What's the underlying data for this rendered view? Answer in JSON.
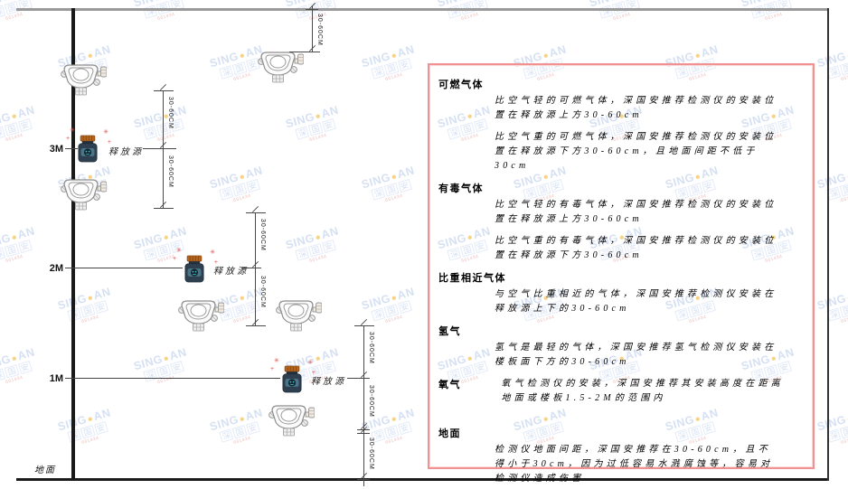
{
  "colors": {
    "panel_border": "#f29191",
    "wm_blue": "#bccdec",
    "wm_dot": "#f0b93a",
    "wm_sub": "#e09090",
    "src_body": "#2e3f4f",
    "src_band": "#4a7587",
    "src_lid": "#b5651d",
    "src_face": "#35c0d0",
    "sparkle": "#e05050",
    "line_dark": "#1a1a1a",
    "line_gray": "#9a9a9a",
    "dim_color": "#4a4a4a"
  },
  "watermark": {
    "brand_left": "SING",
    "brand_right": "AN",
    "dot": "●",
    "cn": "深国安",
    "sub": "661434"
  },
  "diagram": {
    "height_labels": [
      "3M",
      "2M",
      "1M"
    ],
    "ground_label": "地面",
    "source_label": "释放源",
    "dim_label": "30-60CM"
  },
  "panel": {
    "sections": [
      {
        "heading": "可燃气体",
        "paras": [
          "比空气轻的可燃气体，深国安推荐检测仪的安装位置在释放源上方30-60cm",
          "比空气重的可燃气体，深国安推荐检测仪的安装位置在释放源下方30-60cm，且地面间距不低于30cm"
        ]
      },
      {
        "heading": "有毒气体",
        "paras": [
          "比空气轻的有毒气体，深国安推荐检测仪的安装位置在释放源上方30-60cm",
          "比空气重的有毒气体，深国安推荐检测仪的安装位置在释放源下方30-60cm"
        ]
      },
      {
        "heading": "比重相近气体",
        "paras": [
          "与空气比重相近的气体，深国安推荐检测仪安装在释放源上下的30-60cm"
        ]
      },
      {
        "heading": "氢气",
        "paras": [
          "氢气是最轻的气体，深国安推荐氢气检测仪安装在楼板面下方的30-60cm"
        ]
      },
      {
        "heading": "氧气",
        "paras": [
          "氧气检测仪的安装，深国安推荐其安装高度在距离地面或楼板1.5-2M的范围内"
        ]
      },
      {
        "heading": "地面",
        "paras": [
          "检测仪地面间距，深国安推荐在30-60cm，且不得小于30cm，因为过低容易水溅腐蚀等，容易对检测仪造成伤害"
        ]
      }
    ]
  }
}
